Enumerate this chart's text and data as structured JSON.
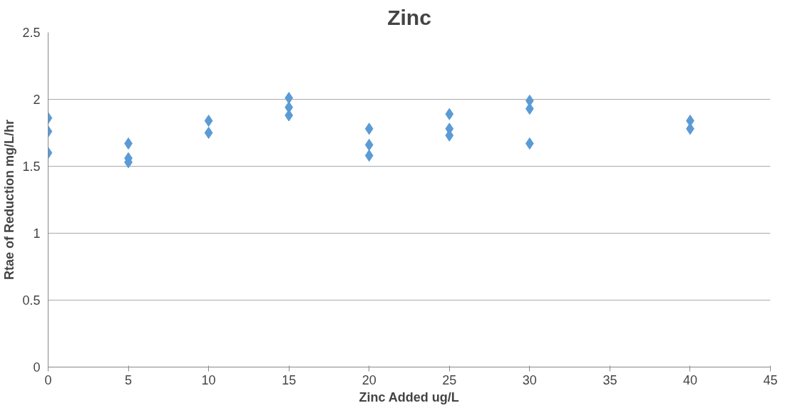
{
  "chart_data": {
    "type": "scatter",
    "title": "Zinc",
    "xlabel": "Zinc Added ug/L",
    "ylabel": "Rtae of Reduction mg/L/hr",
    "x": [
      0,
      0,
      0,
      5,
      5,
      5,
      10,
      10,
      15,
      15,
      15,
      20,
      20,
      20,
      25,
      25,
      25,
      30,
      30,
      30,
      40,
      40
    ],
    "series": [
      {
        "color": "#5b9bd5",
        "values": [
          1.86,
          1.76,
          1.6,
          1.67,
          1.56,
          1.53,
          1.84,
          1.75,
          2.01,
          1.94,
          1.88,
          1.78,
          1.66,
          1.58,
          1.89,
          1.78,
          1.73,
          1.99,
          1.93,
          1.67,
          1.84,
          1.78
        ]
      }
    ],
    "xlim": [
      0,
      45
    ],
    "xticks": [
      0,
      5,
      10,
      15,
      20,
      25,
      30,
      35,
      40,
      45
    ],
    "ylim": [
      0,
      2.5
    ],
    "yticks": [
      0,
      0.5,
      1,
      1.5,
      2,
      2.5
    ],
    "grid": "y",
    "marker": "diamond"
  }
}
